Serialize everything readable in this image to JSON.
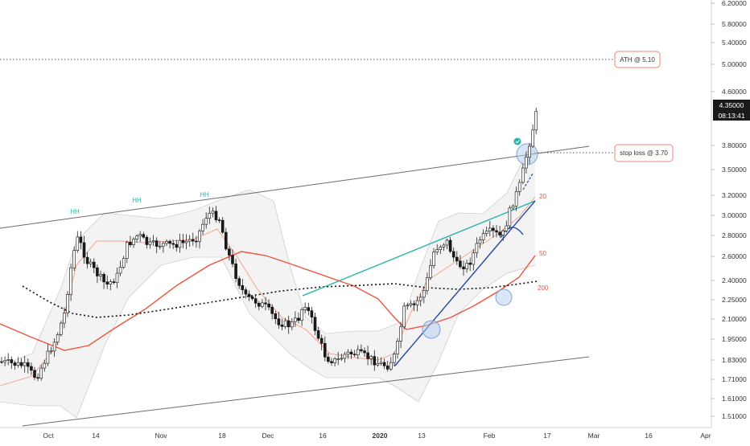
{
  "chart_data": {
    "type": "candlestick",
    "scale": "log",
    "y_ticks": [
      "6.20000",
      "5.80000",
      "5.40000",
      "5.00000",
      "4.60000",
      "3.80000",
      "3.50000",
      "3.20000",
      "3.00000",
      "2.80000",
      "2.60000",
      "2.40000",
      "2.25000",
      "2.10000",
      "1.95000",
      "1.83000",
      "1.71000",
      "1.61000",
      "1.51000"
    ],
    "x_ticks": [
      "Oct",
      "14",
      "Nov",
      "18",
      "Dec",
      "16",
      "2020",
      "13",
      "Feb",
      "17",
      "Mar",
      "16",
      "Apr"
    ],
    "price_label": "4.35000",
    "countdown_label": "08:13:41",
    "annotations": {
      "ath": {
        "text": "ATH @ 5.10",
        "price": 5.1
      },
      "stop_loss": {
        "text": "stop loss @ 3.70",
        "price": 3.7
      },
      "hh_labels": [
        "HH",
        "HH",
        "HH"
      ],
      "ma_labels": [
        "20",
        "50",
        "200"
      ]
    },
    "colors": {
      "up": "#ffffff",
      "down": "#1a1a1a",
      "wick": "#222222",
      "ma20": "#f6a38f",
      "ma50": "#f0533a",
      "ma200": "#111111",
      "teal": "#26b5a8",
      "blue": "#2447a8",
      "channel": "#6b6b6b",
      "label_border": "#f0847a"
    }
  }
}
